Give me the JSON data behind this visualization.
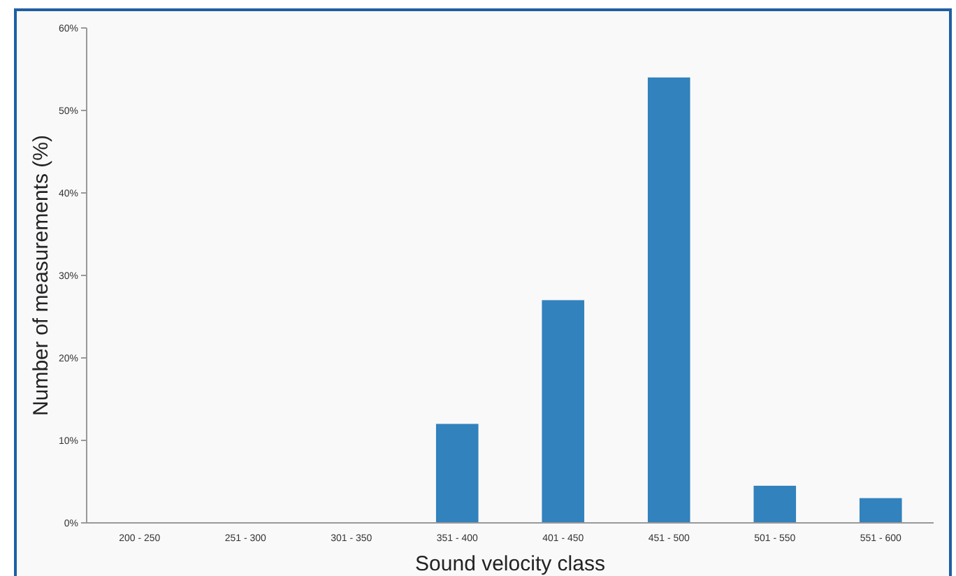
{
  "chart_data": {
    "type": "bar",
    "xlabel": "Sound velocity class",
    "ylabel": "Number of measurements (%)",
    "categories": [
      "200 - 250",
      "251 - 300",
      "301 - 350",
      "351 - 400",
      "401 - 450",
      "451 - 500",
      "501 - 550",
      "551 - 600"
    ],
    "values": [
      0,
      0,
      0,
      12,
      27,
      54,
      4.5,
      3
    ],
    "color": "#3182bd",
    "ylim": [
      0,
      60
    ],
    "yticks": [
      {
        "value": 0,
        "label": "0%"
      },
      {
        "value": 10,
        "label": "10%"
      },
      {
        "value": 20,
        "label": "20%"
      },
      {
        "value": 30,
        "label": "30%"
      },
      {
        "value": 40,
        "label": "40%"
      },
      {
        "value": 50,
        "label": "50%"
      },
      {
        "value": 60,
        "label": "60%"
      }
    ],
    "grid": false
  }
}
